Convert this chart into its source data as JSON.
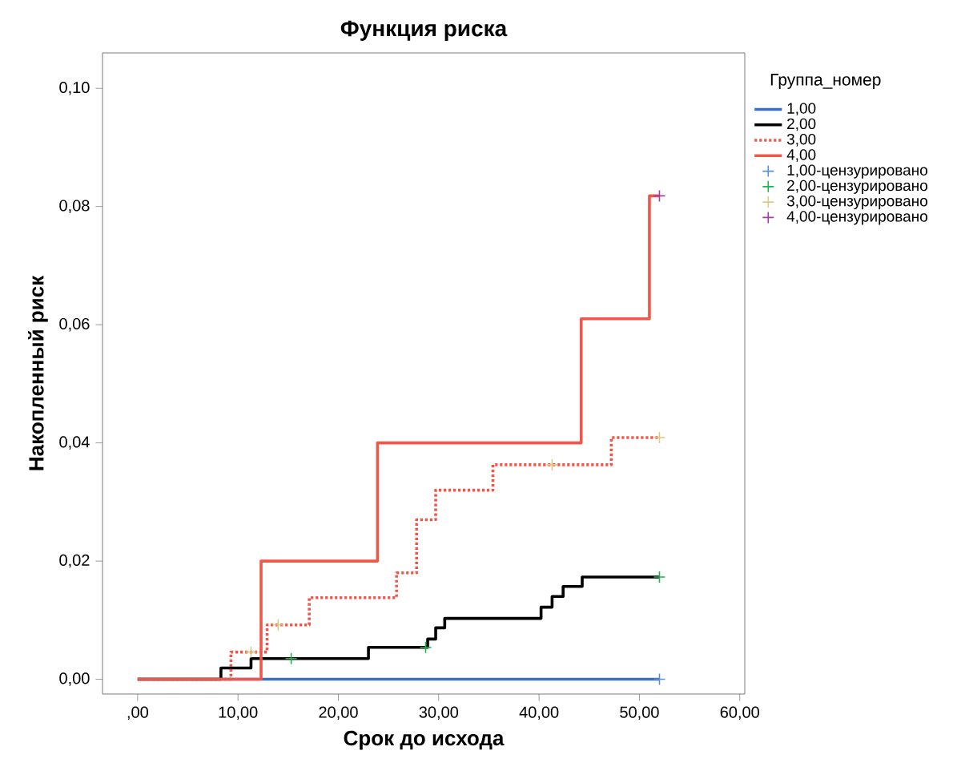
{
  "chart_data": {
    "type": "step",
    "title": "Функция риска",
    "xlabel": "Срок до исхода",
    "ylabel": "Накопленный риск",
    "legend_title": "Группа_номер",
    "legend": "right",
    "grid": false,
    "xlim": [
      -3.5,
      60.5
    ],
    "ylim": [
      -0.0025,
      0.106
    ],
    "xticks": [
      {
        "value": 0,
        "label": ",00"
      },
      {
        "value": 10,
        "label": "10,00"
      },
      {
        "value": 20,
        "label": "20,00"
      },
      {
        "value": 30,
        "label": "30,00"
      },
      {
        "value": 40,
        "label": "40,00"
      },
      {
        "value": 50,
        "label": "50,00"
      },
      {
        "value": 60,
        "label": "60,00"
      }
    ],
    "yticks": [
      {
        "value": 0,
        "label": "0,00"
      },
      {
        "value": 0.02,
        "label": "0,02"
      },
      {
        "value": 0.04,
        "label": "0,04"
      },
      {
        "value": 0.06,
        "label": "0,06"
      },
      {
        "value": 0.08,
        "label": "0,08"
      },
      {
        "value": 0.1,
        "label": "0,10"
      }
    ],
    "series": [
      {
        "name": "1,00",
        "color": "#3a6fc4",
        "line_style": "solid",
        "x": [
          0,
          52
        ],
        "values": [
          0,
          0
        ]
      },
      {
        "name": "2,00",
        "color": "#000000",
        "line_style": "solid",
        "x": [
          0,
          8.3,
          11.3,
          23.0,
          28.9,
          29.7,
          30.6,
          40.2,
          41.3,
          42.4,
          44.3,
          52
        ],
        "values": [
          0,
          0.0019,
          0.0035,
          0.0054,
          0.0068,
          0.0087,
          0.0103,
          0.0122,
          0.014,
          0.0157,
          0.0173,
          0.0173
        ]
      },
      {
        "name": "3,00",
        "color": "#f0574a",
        "line_style": "dotted",
        "x": [
          0,
          9.3,
          12.9,
          17.1,
          25.8,
          27.8,
          29.7,
          35.4,
          47.2,
          52
        ],
        "values": [
          0,
          0.0046,
          0.0092,
          0.0138,
          0.018,
          0.027,
          0.032,
          0.0363,
          0.0409,
          0.0409
        ]
      },
      {
        "name": "4,00",
        "color": "#f0574a",
        "line_style": "solid",
        "x": [
          0,
          12.3,
          23.9,
          44.2,
          51.0,
          52
        ],
        "values": [
          0,
          0.02,
          0.04,
          0.061,
          0.0818,
          0.0818
        ]
      },
      {
        "name": "1,00-цензурировано",
        "type": "scatter",
        "marker": "cross",
        "color": "#5b8fd8",
        "x": [
          52
        ],
        "values": [
          0
        ]
      },
      {
        "name": "2,00-цензурировано",
        "type": "scatter",
        "marker": "cross",
        "color": "#22b04a",
        "x": [
          15.3,
          28.7,
          52
        ],
        "values": [
          0.0035,
          0.0054,
          0.0173
        ]
      },
      {
        "name": "3,00-цензурировано",
        "type": "scatter",
        "marker": "cross",
        "color": "#d8cc8a",
        "x": [
          11.3,
          14.0,
          41.3,
          52
        ],
        "values": [
          0.0046,
          0.0092,
          0.0363,
          0.0409
        ]
      },
      {
        "name": "4,00-цензурировано",
        "type": "scatter",
        "marker": "cross",
        "color": "#a040a0",
        "x": [
          52
        ],
        "values": [
          0.0818
        ]
      }
    ]
  }
}
